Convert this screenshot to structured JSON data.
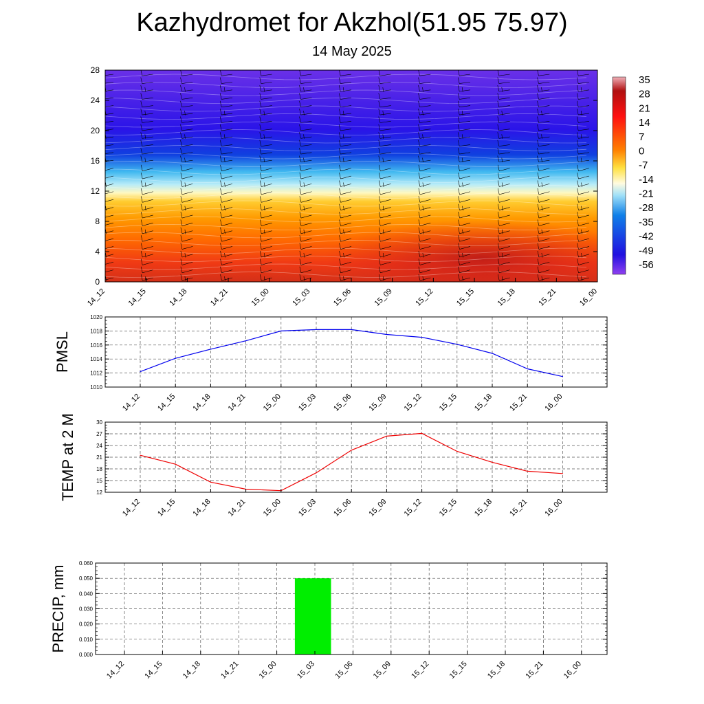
{
  "header": {
    "title": "Kazhydromet for Akzhol(51.95 75.97)",
    "subtitle": "14 May 2025"
  },
  "time_labels": [
    "14_12",
    "14_15",
    "14_18",
    "14_21",
    "15_00",
    "15_03",
    "15_06",
    "15_09",
    "15_12",
    "15_15",
    "15_18",
    "15_21",
    "16_00"
  ],
  "chart_data": [
    {
      "type": "heatmap",
      "ylim": [
        0,
        28
      ],
      "yticks": [
        0,
        4,
        8,
        12,
        16,
        20,
        24,
        28
      ],
      "colorbar": {
        "labels": [
          "35",
          "28",
          "21",
          "14",
          "7",
          "0",
          "-7",
          "-14",
          "-21",
          "-28",
          "-35",
          "-42",
          "-49",
          "-56"
        ],
        "range": [
          -63,
          42
        ]
      }
    },
    {
      "type": "line",
      "ylabel": "PMSL",
      "ylim": [
        1010,
        1020
      ],
      "yticks": [
        1010,
        1012,
        1014,
        1016,
        1018,
        1020
      ],
      "values": [
        1012.2,
        1014.1,
        1015.4,
        1016.6,
        1018.0,
        1018.2,
        1018.2,
        1017.5,
        1017.1,
        1016.1,
        1014.8,
        1012.6,
        1011.5
      ],
      "color": "#0000ee"
    },
    {
      "type": "line",
      "ylabel": "TEMP at 2 M",
      "ylim": [
        12,
        30
      ],
      "yticks": [
        12,
        15,
        18,
        21,
        24,
        27,
        30
      ],
      "values": [
        21.5,
        19.2,
        14.6,
        12.8,
        12.4,
        17.0,
        22.8,
        26.4,
        27.1,
        22.5,
        19.7,
        17.4,
        16.8
      ],
      "color": "#ee0000"
    },
    {
      "type": "bar",
      "ylabel": "PRECIP, mm",
      "ylim": [
        0,
        0.06
      ],
      "yticks": [
        "0.000",
        "0.010",
        "0.020",
        "0.030",
        "0.040",
        "0.050",
        "0.060"
      ],
      "values": [
        0,
        0,
        0,
        0,
        0,
        0.05,
        0,
        0,
        0,
        0,
        0,
        0,
        0
      ],
      "color": "#00ee00"
    }
  ]
}
